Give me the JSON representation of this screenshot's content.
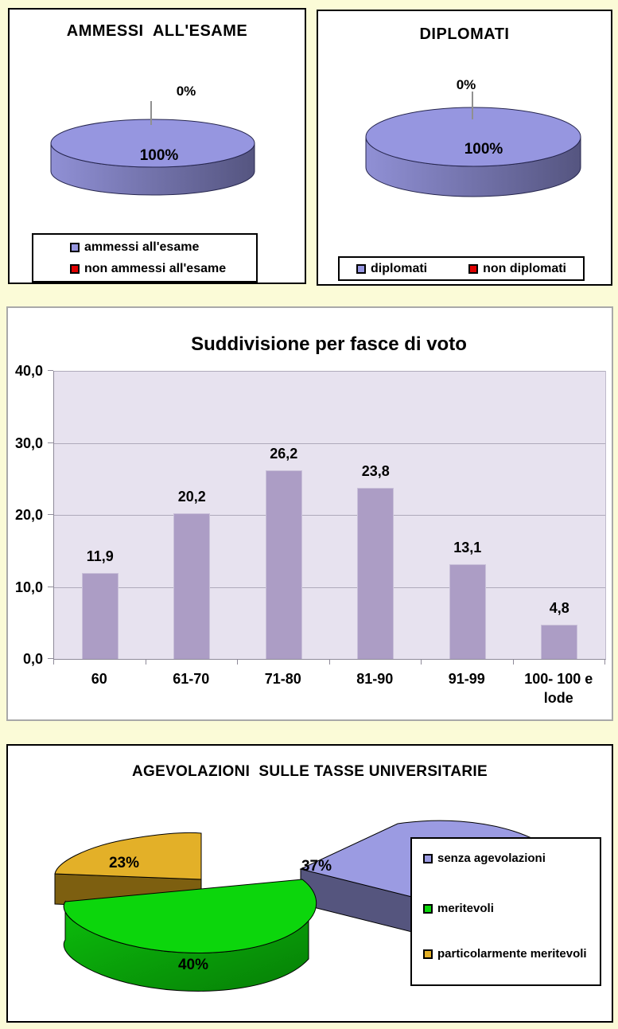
{
  "page": {
    "background": "#FBFBD7",
    "panel_background": "#FFFFFF"
  },
  "chart_data": [
    {
      "type": "pie",
      "title": "AMMESSI  ALL'ESAME",
      "slices": [
        {
          "label": "ammessi all'esame",
          "pct": 100,
          "data_label": "100%",
          "color": "#9696E0"
        },
        {
          "label": "non ammessi all'esame",
          "pct": 0,
          "data_label": "0%",
          "color": "#E00000"
        }
      ],
      "legend_position": "bottom"
    },
    {
      "type": "pie",
      "title": "DIPLOMATI",
      "slices": [
        {
          "label": "diplomati",
          "pct": 100,
          "data_label": "100%",
          "color": "#9696E0"
        },
        {
          "label": "non diplomati",
          "pct": 0,
          "data_label": "0%",
          "color": "#E00000"
        }
      ],
      "legend_position": "bottom"
    },
    {
      "type": "bar",
      "title": "Suddivisione per fasce di voto",
      "categories": [
        "60",
        "61-70",
        "71-80",
        "81-90",
        "91-99",
        "100- 100 e lode"
      ],
      "values": [
        11.9,
        20.2,
        26.2,
        23.8,
        13.1,
        4.8
      ],
      "value_labels": [
        "11,9",
        "20,2",
        "26,2",
        "23,8",
        "13,1",
        "4,8"
      ],
      "y_ticks": [
        "0,0",
        "10,0",
        "20,0",
        "30,0",
        "40,0"
      ],
      "ylim": [
        0,
        40
      ],
      "grid": true,
      "decimal_separator": ",",
      "bar_color": "#AC9DC5",
      "plot_bg": "#E7E2EF",
      "legend_position": "none"
    },
    {
      "type": "pie",
      "title": "AGEVOLAZIONI  SULLE TASSE UNIVERSITARIE",
      "slices": [
        {
          "label": "senza agevolazioni",
          "pct": 37,
          "data_label": "37%",
          "color": "#9B9BE2"
        },
        {
          "label": "meritevoli",
          "pct": 40,
          "data_label": "40%",
          "color": "#0CD60C"
        },
        {
          "label": "particolarmente meritevoli",
          "pct": 23,
          "data_label": "23%",
          "color": "#E3B028"
        }
      ],
      "legend_position": "right"
    }
  ]
}
